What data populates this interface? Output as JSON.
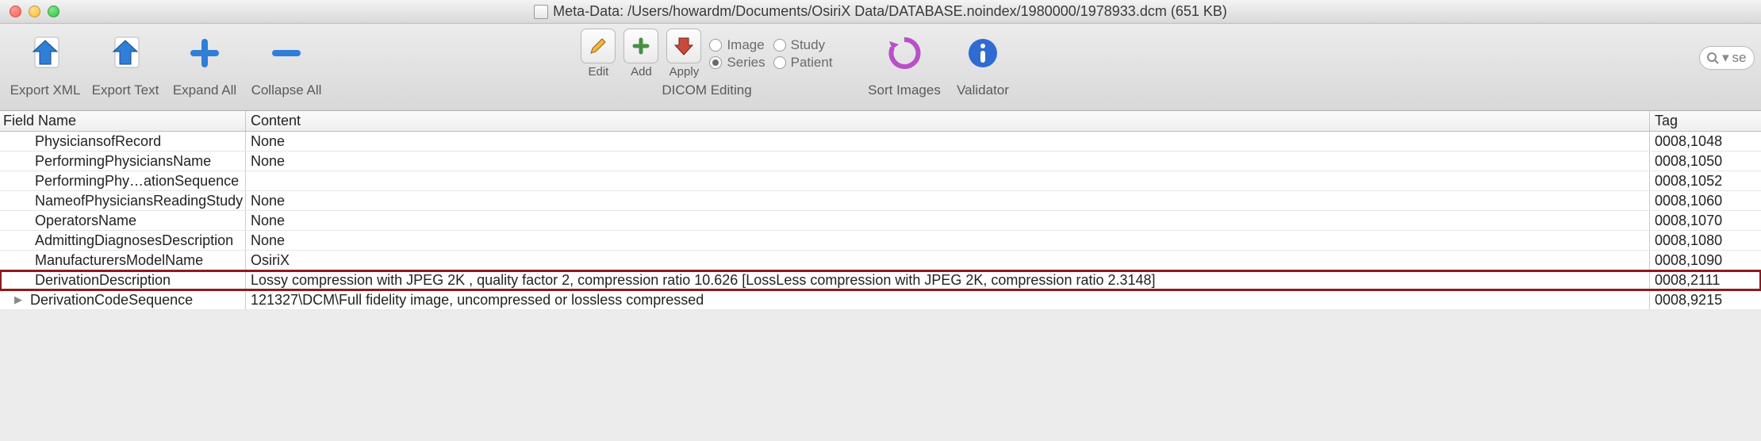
{
  "window": {
    "title": "Meta-Data: /Users/howardm/Documents/OsiriX Data/DATABASE.noindex/1980000/1978933.dcm (651 KB)"
  },
  "toolbar": {
    "exportXml": "Export XML",
    "exportText": "Export Text",
    "expandAll": "Expand All",
    "collapseAll": "Collapse All",
    "edit": "Edit",
    "add": "Add",
    "apply": "Apply",
    "dicomEditing": "DICOM Editing",
    "radios": {
      "image": "Image",
      "series": "Series",
      "study": "Study",
      "patient": "Patient",
      "selected": "series"
    },
    "sortImages": "Sort Images",
    "validator": "Validator",
    "searchPlaceholder": "se"
  },
  "columns": {
    "fieldName": "Field Name",
    "content": "Content",
    "tag": "Tag"
  },
  "rows": [
    {
      "name": "PhysiciansofRecord",
      "content": "None",
      "tag": "0008,1048",
      "arrow": false,
      "highlight": false
    },
    {
      "name": "PerformingPhysiciansName",
      "content": "None",
      "tag": "0008,1050",
      "arrow": false,
      "highlight": false
    },
    {
      "name": "PerformingPhy…ationSequence",
      "content": "",
      "tag": "0008,1052",
      "arrow": false,
      "highlight": false
    },
    {
      "name": "NameofPhysiciansReadingStudy",
      "content": "None",
      "tag": "0008,1060",
      "arrow": false,
      "highlight": false
    },
    {
      "name": "OperatorsName",
      "content": "None",
      "tag": "0008,1070",
      "arrow": false,
      "highlight": false
    },
    {
      "name": "AdmittingDiagnosesDescription",
      "content": "None",
      "tag": "0008,1080",
      "arrow": false,
      "highlight": false
    },
    {
      "name": "ManufacturersModelName",
      "content": "OsiriX",
      "tag": "0008,1090",
      "arrow": false,
      "highlight": false
    },
    {
      "name": "DerivationDescription",
      "content": "Lossy compression with JPEG 2K , quality factor 2, compression ratio 10.626 [LossLess compression with JPEG 2K, compression ratio 2.3148]",
      "tag": "0008,2111",
      "arrow": false,
      "highlight": true
    },
    {
      "name": "DerivationCodeSequence",
      "content": "121327\\DCM\\Full fidelity image, uncompressed or lossless compressed",
      "tag": "0008,9215",
      "arrow": true,
      "highlight": false
    }
  ],
  "colors": {
    "highlightBorder": "#8e1b1b",
    "toolbarIconBlue": "#2f7ed8",
    "toolbarIconRed": "#c94a3b",
    "toolbarIconGreen": "#59b24d",
    "infoBlue": "#2f6bd0",
    "sortPurple": "#b94fc9"
  }
}
